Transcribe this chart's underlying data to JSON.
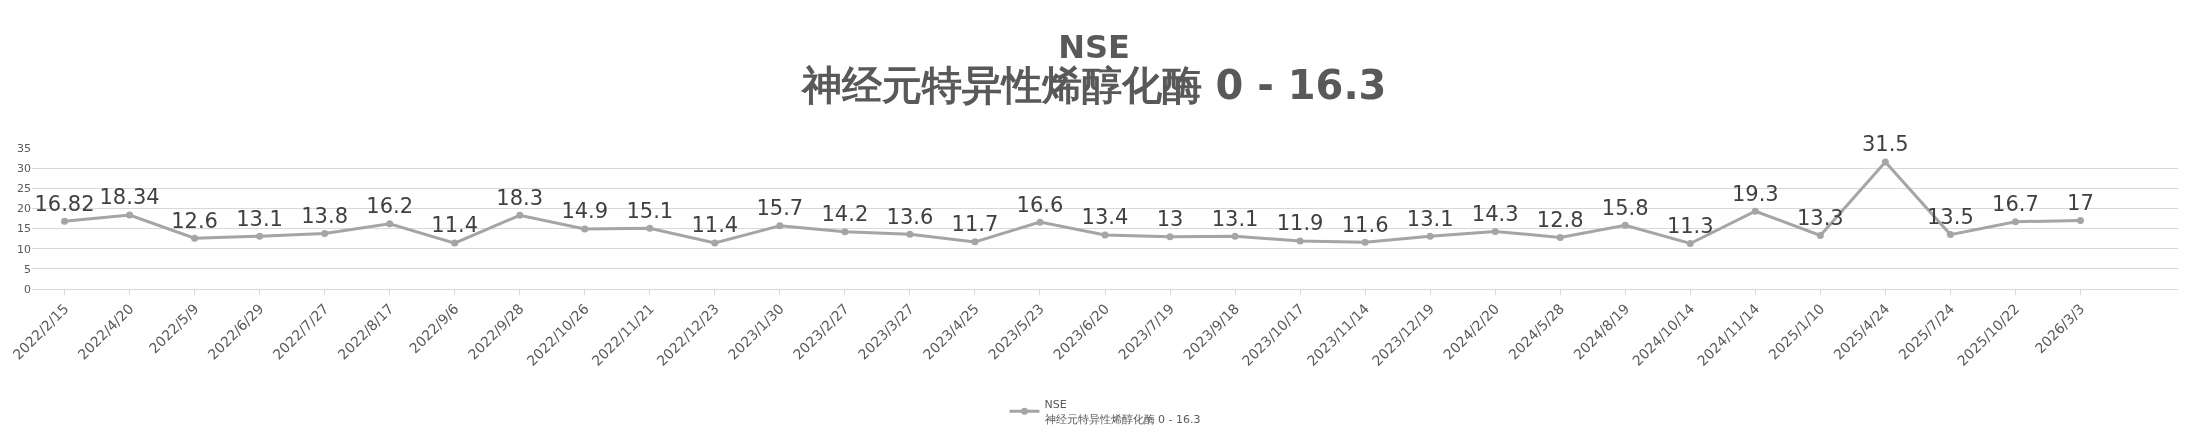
{
  "chart_data": {
    "type": "line",
    "title": "NSE",
    "subtitle": "神经元特异性烯醇化酶 0 - 16.3",
    "categories": [
      "2022/2/15",
      "2022/4/20",
      "2022/5/9",
      "2022/6/29",
      "2022/7/27",
      "2022/8/17",
      "2022/9/6",
      "2022/9/28",
      "2022/10/26",
      "2022/11/21",
      "2022/12/23",
      "2023/1/30",
      "2023/2/27",
      "2023/3/27",
      "2023/4/25",
      "2023/5/23",
      "2023/6/20",
      "2023/7/19",
      "2023/9/18",
      "2023/10/17",
      "2023/11/14",
      "2023/12/19",
      "2024/2/20",
      "2024/5/28",
      "2024/8/19",
      "2024/10/14",
      "2024/11/14",
      "2025/1/10",
      "2025/4/24",
      "2025/7/24",
      "2025/10/22",
      "2026/3/3",
      null
    ],
    "series": [
      {
        "name": "NSE\n神经元特异性烯醇化酶 0 - 16.3",
        "color": "#a5a5a5",
        "values": [
          16.82,
          18.34,
          12.6,
          13.1,
          13.8,
          16.2,
          11.4,
          18.3,
          14.9,
          15.1,
          11.4,
          15.7,
          14.2,
          13.6,
          11.7,
          16.6,
          13.4,
          13,
          13.1,
          11.9,
          11.6,
          13.1,
          14.3,
          12.8,
          15.8,
          11.3,
          19.3,
          13.3,
          31.5,
          13.5,
          16.7,
          17,
          null
        ]
      }
    ],
    "ylim": [
      0,
      35
    ],
    "yticks": [
      0,
      5,
      10,
      15,
      20,
      25,
      30,
      35
    ],
    "grid": "y",
    "legend": "bottom",
    "marker": "circle",
    "line_style": "solid",
    "data_labels": true
  }
}
